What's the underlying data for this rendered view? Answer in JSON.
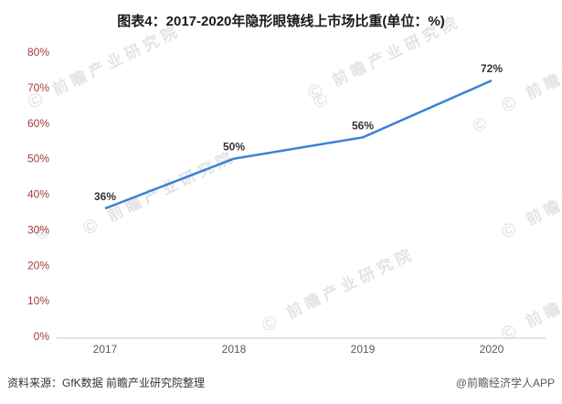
{
  "title": "图表4：2017-2020年隐形眼镜线上市场比重(单位：%)",
  "chart_data": {
    "type": "line",
    "title": "图表4：2017-2020年隐形眼镜线上市场比重(单位：%)",
    "categories": [
      "2017",
      "2018",
      "2019",
      "2020"
    ],
    "values": [
      36,
      50,
      56,
      72
    ],
    "labels": [
      "36%",
      "50%",
      "56%",
      "72%"
    ],
    "xlabel": "",
    "ylabel": "",
    "ylim": [
      0,
      80
    ],
    "y_ticks": [
      "0%",
      "10%",
      "20%",
      "30%",
      "40%",
      "50%",
      "60%",
      "70%",
      "80%"
    ],
    "grid": false,
    "legend": "none",
    "colors": {
      "line": "#3b82d6",
      "y_label": "#a23c3c",
      "x_label": "#595959",
      "data_label": "#333333",
      "axis_line": "#c9c9c9"
    }
  },
  "watermark": {
    "text": "前瞻产业研究院",
    "copyright": "©"
  },
  "footer": {
    "source": "资料来源：GfK数据 前瞻产业研究院整理",
    "credit": "@前瞻经济学人APP"
  }
}
